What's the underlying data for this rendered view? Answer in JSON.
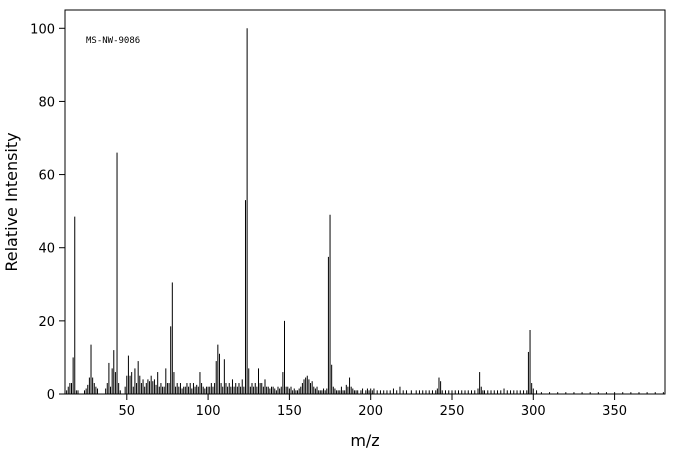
{
  "chart_data": {
    "type": "stem",
    "annotation": "MS-NW-9086",
    "xlabel": "m/z",
    "ylabel": "Relative Intensity",
    "color": "#000000",
    "xlim": [
      12,
      381
    ],
    "ylim": [
      0,
      105
    ],
    "xticks": [
      50,
      100,
      150,
      200,
      250,
      300,
      350
    ],
    "yticks": [
      0,
      20,
      40,
      60,
      80,
      100
    ],
    "x": [
      13,
      14,
      15,
      16,
      17,
      18,
      19,
      20,
      24,
      25,
      26,
      27,
      28,
      29,
      30,
      31,
      32,
      37,
      38,
      39,
      40,
      41,
      42,
      43,
      44,
      45,
      46,
      49,
      50,
      51,
      52,
      53,
      54,
      55,
      56,
      57,
      58,
      59,
      60,
      61,
      62,
      63,
      64,
      65,
      66,
      67,
      68,
      69,
      70,
      71,
      72,
      73,
      74,
      75,
      76,
      77,
      78,
      79,
      80,
      81,
      82,
      83,
      84,
      85,
      86,
      87,
      88,
      89,
      90,
      91,
      92,
      93,
      94,
      95,
      96,
      97,
      98,
      99,
      100,
      101,
      102,
      103,
      104,
      105,
      106,
      107,
      108,
      109,
      110,
      111,
      112,
      113,
      114,
      115,
      116,
      117,
      118,
      119,
      120,
      121,
      122,
      123,
      124,
      125,
      126,
      127,
      128,
      129,
      130,
      131,
      132,
      133,
      134,
      135,
      136,
      137,
      138,
      139,
      140,
      141,
      142,
      143,
      144,
      145,
      146,
      147,
      148,
      149,
      150,
      151,
      152,
      153,
      154,
      155,
      156,
      157,
      158,
      159,
      160,
      161,
      162,
      163,
      164,
      165,
      166,
      167,
      168,
      169,
      170,
      171,
      172,
      173,
      174,
      175,
      176,
      177,
      178,
      179,
      180,
      181,
      182,
      183,
      184,
      185,
      186,
      187,
      188,
      189,
      190,
      191,
      192,
      194,
      195,
      197,
      198,
      199,
      200,
      201,
      202,
      204,
      206,
      208,
      210,
      212,
      214,
      216,
      218,
      220,
      222,
      225,
      228,
      230,
      232,
      234,
      236,
      238,
      240,
      241,
      242,
      243,
      244,
      246,
      248,
      250,
      252,
      254,
      256,
      258,
      260,
      262,
      264,
      266,
      267,
      268,
      269,
      270,
      272,
      274,
      276,
      278,
      280,
      282,
      284,
      286,
      288,
      290,
      292,
      294,
      296,
      297,
      298,
      299,
      300,
      302,
      305,
      310,
      315,
      320,
      325,
      330,
      335,
      340,
      345,
      350,
      355,
      360,
      365,
      370,
      375,
      380
    ],
    "values": [
      1,
      2,
      3,
      3,
      10,
      48.5,
      1,
      1,
      1,
      1.5,
      2.5,
      4.5,
      13.5,
      4.5,
      3,
      2,
      1.5,
      1.5,
      3,
      8.5,
      2,
      7,
      12,
      6,
      66,
      3,
      1,
      2,
      5,
      10.5,
      5,
      6,
      2,
      7,
      3,
      9,
      5,
      3,
      4,
      2,
      3,
      4,
      3.5,
      5,
      3.5,
      4,
      2.5,
      6,
      2,
      3,
      2,
      2,
      7,
      3,
      3,
      18.5,
      30.5,
      6,
      2,
      3,
      2,
      3,
      1.5,
      2,
      2,
      3,
      2,
      3,
      1.5,
      3,
      2,
      2.5,
      2,
      6,
      3,
      2,
      1.5,
      2,
      2,
      2,
      3,
      2,
      3,
      9,
      13.5,
      11,
      3,
      2,
      9.5,
      3,
      2,
      3,
      2,
      4,
      2,
      3,
      2,
      3,
      2,
      4,
      2,
      53,
      100,
      7,
      2,
      3,
      2,
      3,
      2,
      7,
      3,
      3,
      2,
      4,
      2,
      2,
      1.5,
      2,
      2,
      1.5,
      1,
      2,
      1.5,
      2,
      6,
      20,
      2,
      2,
      1.5,
      2,
      1,
      1.5,
      1,
      1,
      1.5,
      2,
      3,
      4,
      4.5,
      5,
      4,
      3,
      3.5,
      2,
      1.5,
      2,
      1,
      1,
      1,
      1.5,
      1,
      1.5,
      37.5,
      49,
      8,
      2,
      1.5,
      1,
      1,
      1,
      2,
      1,
      1,
      2.5,
      2,
      4.5,
      2,
      1.5,
      1,
      1,
      1,
      1,
      1.5,
      1,
      1.5,
      1,
      1.5,
      1,
      1.5,
      1,
      1,
      1,
      1,
      1,
      1.5,
      1,
      2,
      1,
      1,
      1,
      1,
      1,
      1,
      1,
      1,
      1,
      1,
      1.5,
      4.5,
      3.5,
      1,
      1,
      1,
      1,
      1,
      1,
      1,
      1,
      1,
      1,
      1,
      1.5,
      6,
      2,
      1,
      1,
      1,
      1,
      1,
      1,
      1,
      1.5,
      1,
      1,
      1,
      1,
      1,
      1,
      1,
      11.5,
      17.5,
      3,
      1.5,
      1,
      0.5,
      0.5,
      0.5,
      0.5,
      0.5,
      0.5,
      0.5,
      0.5,
      0.5,
      0.5,
      0.5,
      0.5,
      0.5,
      0.5,
      0.5,
      0.5
    ]
  }
}
